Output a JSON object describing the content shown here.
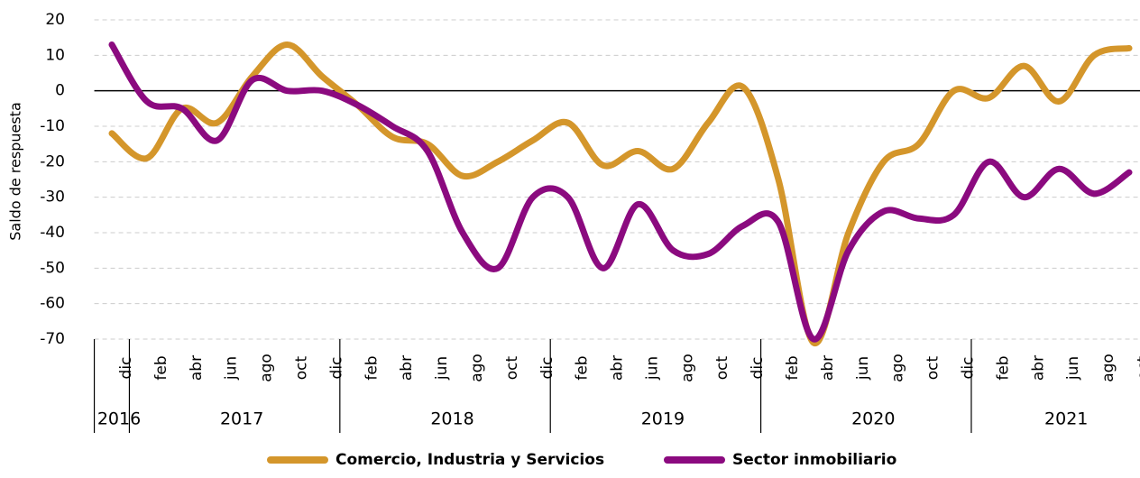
{
  "chart_data": {
    "type": "line",
    "y_label": "Saldo de respuesta",
    "categories": [
      "dic",
      "feb",
      "abr",
      "jun",
      "ago",
      "oct",
      "dic",
      "feb",
      "abr",
      "jun",
      "ago",
      "oct",
      "dic",
      "feb",
      "abr",
      "jun",
      "ago",
      "oct",
      "dic",
      "feb",
      "abr",
      "jun",
      "ago",
      "oct",
      "dic",
      "feb",
      "abr",
      "jun",
      "ago",
      "oct"
    ],
    "years": [
      "2016",
      "2017",
      "2017",
      "2017",
      "2017",
      "2017",
      "2017",
      "2018",
      "2018",
      "2018",
      "2018",
      "2018",
      "2018",
      "2019",
      "2019",
      "2019",
      "2019",
      "2019",
      "2019",
      "2020",
      "2020",
      "2020",
      "2020",
      "2020",
      "2020",
      "2021",
      "2021",
      "2021",
      "2021",
      "2021"
    ],
    "series": [
      {
        "name": "Comercio, Industria y Servicios",
        "color": "#d4962b",
        "values": [
          -12,
          -19,
          -5,
          -9,
          4,
          13,
          4,
          -4,
          -13,
          -15,
          -24,
          -20,
          -14,
          -9,
          -21,
          -17,
          -22,
          -9,
          1,
          -25,
          -71,
          -40,
          -20,
          -15,
          0,
          -2,
          7,
          -3,
          10,
          12
        ]
      },
      {
        "name": "Sector inmobiliario",
        "color": "#8b0a7f",
        "values": [
          13,
          -3,
          -5,
          -14,
          3,
          0,
          0,
          -4,
          -10,
          -17,
          -40,
          -50,
          -30,
          -30,
          -50,
          -32,
          -45,
          -46,
          -38,
          -37,
          -70,
          -45,
          -34,
          -36,
          -35,
          -20,
          -30,
          -22,
          -29,
          -23
        ]
      }
    ],
    "ylim": [
      -70,
      20
    ],
    "yticks": [
      -70,
      -60,
      -50,
      -40,
      -30,
      -20,
      -10,
      0,
      10,
      20
    ],
    "grid": true
  }
}
